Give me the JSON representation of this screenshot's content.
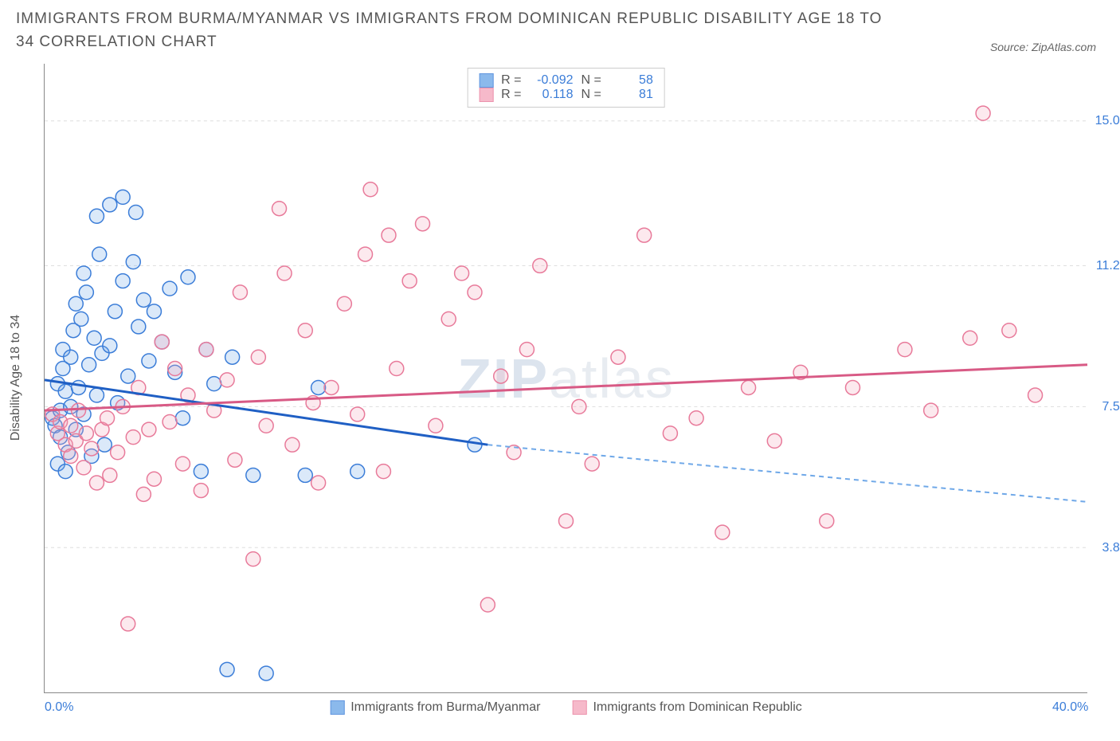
{
  "title": "IMMIGRANTS FROM BURMA/MYANMAR VS IMMIGRANTS FROM DOMINICAN REPUBLIC DISABILITY AGE 18 TO 34 CORRELATION CHART",
  "source": "Source: ZipAtlas.com",
  "y_axis_label": "Disability Age 18 to 34",
  "watermark_bold": "ZIP",
  "watermark_light": "atlas",
  "chart": {
    "type": "scatter",
    "xlim": [
      0,
      40
    ],
    "ylim": [
      0,
      16.5
    ],
    "x_ticks": [
      {
        "v": 0,
        "label": "0.0%"
      },
      {
        "v": 40,
        "label": "40.0%"
      }
    ],
    "y_ticks": [
      {
        "v": 3.8,
        "label": "3.8%"
      },
      {
        "v": 7.5,
        "label": "7.5%"
      },
      {
        "v": 11.2,
        "label": "11.2%"
      },
      {
        "v": 15.0,
        "label": "15.0%"
      }
    ],
    "grid_color": "#dddddd",
    "background_color": "#ffffff",
    "marker_radius": 9,
    "marker_stroke_width": 1.5,
    "marker_fill_opacity": 0.25,
    "series": [
      {
        "name": "Immigrants from Burma/Myanmar",
        "color": "#6fa8e8",
        "stroke": "#3b7dd8",
        "R": "-0.092",
        "N": "58",
        "trend": {
          "x0": 0,
          "y0": 8.2,
          "x1": 17,
          "y1": 6.5,
          "x2": 40,
          "y2": 5.0,
          "solid_color": "#1f5fc4",
          "dash_color": "#6fa8e8"
        },
        "points": [
          [
            0.3,
            7.2
          ],
          [
            0.4,
            7.0
          ],
          [
            0.5,
            8.1
          ],
          [
            0.5,
            6.0
          ],
          [
            0.6,
            6.7
          ],
          [
            0.6,
            7.4
          ],
          [
            0.7,
            8.5
          ],
          [
            0.7,
            9.0
          ],
          [
            0.8,
            5.8
          ],
          [
            0.8,
            7.9
          ],
          [
            0.9,
            6.3
          ],
          [
            1.0,
            8.8
          ],
          [
            1.0,
            7.5
          ],
          [
            1.1,
            9.5
          ],
          [
            1.2,
            6.9
          ],
          [
            1.2,
            10.2
          ],
          [
            1.3,
            8.0
          ],
          [
            1.4,
            9.8
          ],
          [
            1.5,
            7.3
          ],
          [
            1.5,
            11.0
          ],
          [
            1.6,
            10.5
          ],
          [
            1.7,
            8.6
          ],
          [
            1.8,
            6.2
          ],
          [
            1.9,
            9.3
          ],
          [
            2.0,
            12.5
          ],
          [
            2.0,
            7.8
          ],
          [
            2.1,
            11.5
          ],
          [
            2.2,
            8.9
          ],
          [
            2.3,
            6.5
          ],
          [
            2.5,
            12.8
          ],
          [
            2.5,
            9.1
          ],
          [
            2.7,
            10.0
          ],
          [
            2.8,
            7.6
          ],
          [
            3.0,
            10.8
          ],
          [
            3.0,
            13.0
          ],
          [
            3.2,
            8.3
          ],
          [
            3.4,
            11.3
          ],
          [
            3.5,
            12.6
          ],
          [
            3.6,
            9.6
          ],
          [
            3.8,
            10.3
          ],
          [
            4.0,
            8.7
          ],
          [
            4.2,
            10.0
          ],
          [
            4.5,
            9.2
          ],
          [
            4.8,
            10.6
          ],
          [
            5.0,
            8.4
          ],
          [
            5.3,
            7.2
          ],
          [
            5.5,
            10.9
          ],
          [
            6.0,
            5.8
          ],
          [
            6.2,
            9.0
          ],
          [
            6.5,
            8.1
          ],
          [
            7.0,
            0.6
          ],
          [
            7.2,
            8.8
          ],
          [
            8.0,
            5.7
          ],
          [
            8.5,
            0.5
          ],
          [
            10.0,
            5.7
          ],
          [
            10.5,
            8.0
          ],
          [
            12.0,
            5.8
          ],
          [
            16.5,
            6.5
          ]
        ]
      },
      {
        "name": "Immigrants from Dominican Republic",
        "color": "#f5a8bd",
        "stroke": "#e87a9a",
        "R": "0.118",
        "N": "81",
        "trend": {
          "x0": 0,
          "y0": 7.4,
          "x1": 40,
          "y1": 8.6,
          "solid_color": "#d85a85"
        },
        "points": [
          [
            0.3,
            7.3
          ],
          [
            0.5,
            6.8
          ],
          [
            0.6,
            7.1
          ],
          [
            0.8,
            6.5
          ],
          [
            1.0,
            7.0
          ],
          [
            1.0,
            6.2
          ],
          [
            1.2,
            6.6
          ],
          [
            1.3,
            7.4
          ],
          [
            1.5,
            5.9
          ],
          [
            1.6,
            6.8
          ],
          [
            1.8,
            6.4
          ],
          [
            2.0,
            5.5
          ],
          [
            2.2,
            6.9
          ],
          [
            2.4,
            7.2
          ],
          [
            2.5,
            5.7
          ],
          [
            2.8,
            6.3
          ],
          [
            3.0,
            7.5
          ],
          [
            3.2,
            1.8
          ],
          [
            3.4,
            6.7
          ],
          [
            3.6,
            8.0
          ],
          [
            3.8,
            5.2
          ],
          [
            4.0,
            6.9
          ],
          [
            4.2,
            5.6
          ],
          [
            4.5,
            9.2
          ],
          [
            4.8,
            7.1
          ],
          [
            5.0,
            8.5
          ],
          [
            5.3,
            6.0
          ],
          [
            5.5,
            7.8
          ],
          [
            6.0,
            5.3
          ],
          [
            6.2,
            9.0
          ],
          [
            6.5,
            7.4
          ],
          [
            7.0,
            8.2
          ],
          [
            7.3,
            6.1
          ],
          [
            7.5,
            10.5
          ],
          [
            8.0,
            3.5
          ],
          [
            8.2,
            8.8
          ],
          [
            8.5,
            7.0
          ],
          [
            9.0,
            12.7
          ],
          [
            9.2,
            11.0
          ],
          [
            9.5,
            6.5
          ],
          [
            10.0,
            9.5
          ],
          [
            10.3,
            7.6
          ],
          [
            10.5,
            5.5
          ],
          [
            11.0,
            8.0
          ],
          [
            11.5,
            10.2
          ],
          [
            12.0,
            7.3
          ],
          [
            12.3,
            11.5
          ],
          [
            12.5,
            13.2
          ],
          [
            13.0,
            5.8
          ],
          [
            13.2,
            12.0
          ],
          [
            13.5,
            8.5
          ],
          [
            14.0,
            10.8
          ],
          [
            14.5,
            12.3
          ],
          [
            15.0,
            7.0
          ],
          [
            15.5,
            9.8
          ],
          [
            16.0,
            11.0
          ],
          [
            16.5,
            10.5
          ],
          [
            17.0,
            2.3
          ],
          [
            17.5,
            8.3
          ],
          [
            18.0,
            6.3
          ],
          [
            18.5,
            9.0
          ],
          [
            19.0,
            11.2
          ],
          [
            20.0,
            4.5
          ],
          [
            20.5,
            7.5
          ],
          [
            21.0,
            6.0
          ],
          [
            22.0,
            8.8
          ],
          [
            23.0,
            12.0
          ],
          [
            24.0,
            6.8
          ],
          [
            25.0,
            7.2
          ],
          [
            26.0,
            4.2
          ],
          [
            27.0,
            8.0
          ],
          [
            28.0,
            6.6
          ],
          [
            29.0,
            8.4
          ],
          [
            30.0,
            4.5
          ],
          [
            31.0,
            8.0
          ],
          [
            33.0,
            9.0
          ],
          [
            34.0,
            7.4
          ],
          [
            35.5,
            9.3
          ],
          [
            36.0,
            15.2
          ],
          [
            37.0,
            9.5
          ],
          [
            38.0,
            7.8
          ]
        ]
      }
    ]
  },
  "legend_labels": {
    "R": "R =",
    "N": "N ="
  }
}
